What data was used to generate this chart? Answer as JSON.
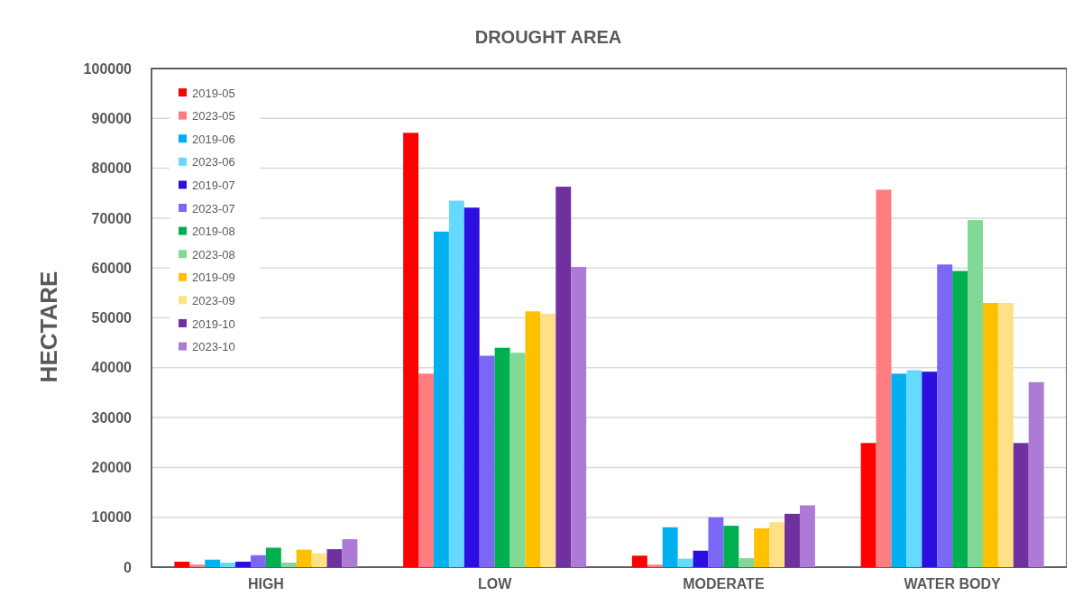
{
  "chart_data": {
    "type": "bar",
    "title": "DROUGHT AREA",
    "ylabel": "HECTARE",
    "categories": [
      "HIGH",
      "LOW",
      "MODERATE",
      "WATER BODY"
    ],
    "series": [
      {
        "name": "2019-05",
        "color": "#ff0000",
        "values": [
          1100,
          87100,
          2300,
          24900
        ]
      },
      {
        "name": "2023-05",
        "color": "#ff7c80",
        "values": [
          500,
          38800,
          500,
          75700
        ]
      },
      {
        "name": "2019-06",
        "color": "#00b0f0",
        "values": [
          1500,
          67300,
          8000,
          38800
        ]
      },
      {
        "name": "2023-06",
        "color": "#66d9ff",
        "values": [
          900,
          73500,
          1700,
          39500
        ]
      },
      {
        "name": "2019-07",
        "color": "#2b0ee0",
        "values": [
          1100,
          72100,
          3300,
          39200
        ]
      },
      {
        "name": "2023-07",
        "color": "#7b68f5",
        "values": [
          2400,
          42400,
          10000,
          60700
        ]
      },
      {
        "name": "2019-08",
        "color": "#00b050",
        "values": [
          3900,
          44000,
          8300,
          59400
        ]
      },
      {
        "name": "2023-08",
        "color": "#80d994",
        "values": [
          900,
          43000,
          1800,
          69600
        ]
      },
      {
        "name": "2019-09",
        "color": "#ffc000",
        "values": [
          3500,
          51300,
          7800,
          53000
        ]
      },
      {
        "name": "2023-09",
        "color": "#ffe085",
        "values": [
          2800,
          50800,
          9000,
          53000
        ]
      },
      {
        "name": "2019-10",
        "color": "#7030a0",
        "values": [
          3600,
          76300,
          10700,
          24900
        ]
      },
      {
        "name": "2023-10",
        "color": "#ad7ad6",
        "values": [
          5600,
          60200,
          12400,
          37100
        ]
      }
    ],
    "ylim": [
      0,
      100000
    ],
    "yticks": [
      0,
      10000,
      20000,
      30000,
      40000,
      50000,
      60000,
      70000,
      80000,
      90000,
      100000
    ],
    "grid": "y",
    "legend": "top left"
  }
}
